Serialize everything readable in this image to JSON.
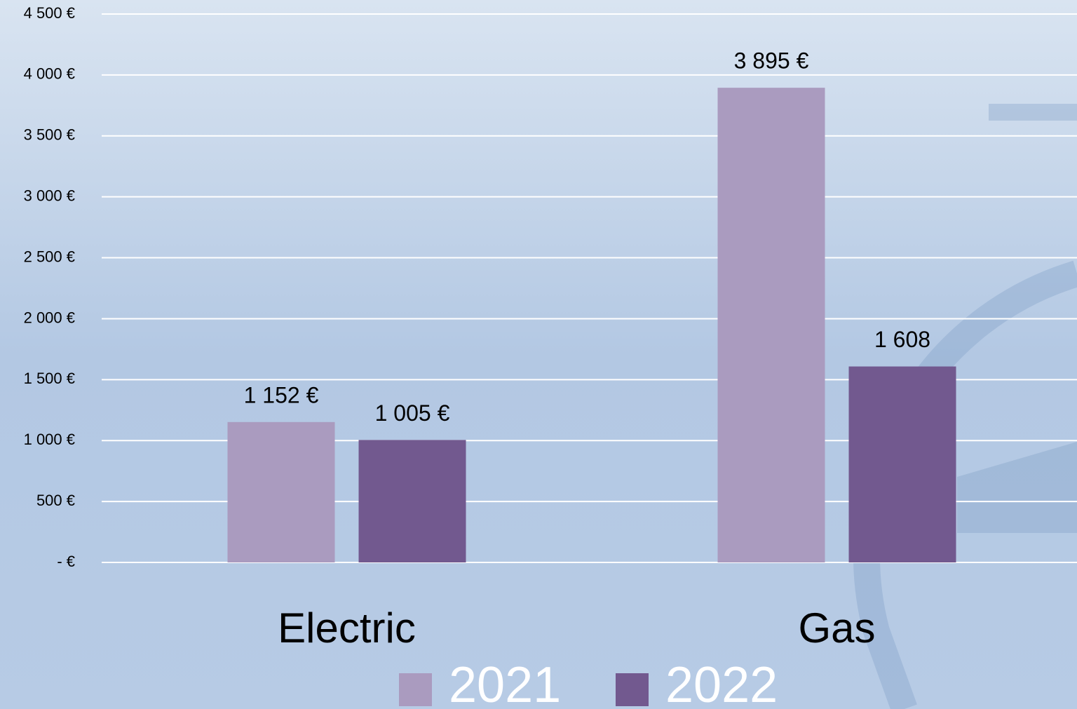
{
  "chart_data": {
    "type": "bar",
    "categories": [
      "Electric",
      "Gas"
    ],
    "series": [
      {
        "name": "2021",
        "color": "#aa9bbf",
        "values": [
          1152,
          3895
        ],
        "value_labels": [
          "1 152 €",
          "3 895 €"
        ]
      },
      {
        "name": "2022",
        "color": "#72598f",
        "values": [
          1005,
          1608
        ],
        "value_labels": [
          "1 005 €",
          "1 608"
        ]
      }
    ],
    "ylim": [
      0,
      4500
    ],
    "yticks": [
      {
        "value": 0,
        "label": "-  €"
      },
      {
        "value": 500,
        "label": "500 €"
      },
      {
        "value": 1000,
        "label": "1 000 €"
      },
      {
        "value": 1500,
        "label": "1 500 €"
      },
      {
        "value": 2000,
        "label": "2 000 €"
      },
      {
        "value": 2500,
        "label": "2 500 €"
      },
      {
        "value": 3000,
        "label": "3 000 €"
      },
      {
        "value": 3500,
        "label": "3 500 €"
      },
      {
        "value": 4000,
        "label": "4 000 €"
      },
      {
        "value": 4500,
        "label": "4 500 €"
      }
    ],
    "grid": true,
    "legend": "bottom"
  }
}
